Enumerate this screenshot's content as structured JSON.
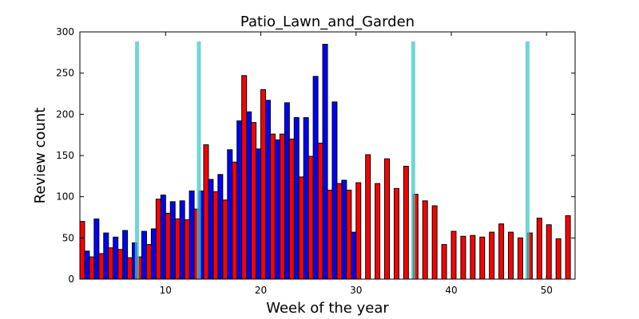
{
  "chart_data": {
    "type": "bar",
    "title": "Patio_Lawn_and_Garden",
    "xlabel": "Week of the year",
    "ylabel": "Review count",
    "xlim": [
      1,
      53
    ],
    "ylim": [
      0,
      300
    ],
    "xticks": [
      "10",
      "20",
      "30",
      "40",
      "50"
    ],
    "yticks": [
      "0",
      "50",
      "100",
      "150",
      "200",
      "250",
      "300"
    ],
    "grid": false,
    "series": [
      {
        "color": "#0000ff",
        "x": [
          2,
          3,
          4,
          5,
          6,
          7,
          8,
          9,
          10,
          11,
          12,
          13,
          14,
          15,
          16,
          17,
          18,
          19,
          20,
          21,
          22,
          23,
          24,
          25,
          26,
          27,
          28,
          29,
          30
        ],
        "values": [
          34,
          73,
          56,
          51,
          59,
          44,
          58,
          61,
          102,
          94,
          95,
          107,
          107,
          121,
          127,
          157,
          192,
          203,
          158,
          217,
          169,
          214,
          196,
          196,
          246,
          285,
          215,
          120,
          57
        ]
      },
      {
        "color": "#ff0000",
        "x": [
          1,
          2,
          3,
          4,
          5,
          6,
          7,
          8,
          9,
          10,
          11,
          12,
          13,
          14,
          15,
          16,
          17,
          18,
          19,
          20,
          21,
          22,
          23,
          24,
          25,
          26,
          27,
          28,
          29,
          30,
          31,
          32,
          33,
          34,
          35,
          36,
          37,
          38,
          39,
          40,
          41,
          42,
          43,
          44,
          45,
          46,
          47,
          48,
          49,
          50,
          51,
          52
        ],
        "values": [
          70,
          27,
          31,
          38,
          36,
          26,
          27,
          42,
          97,
          80,
          73,
          72,
          85,
          163,
          106,
          96,
          142,
          247,
          190,
          230,
          176,
          176,
          170,
          124,
          149,
          165,
          108,
          116,
          108,
          117,
          151,
          116,
          146,
          110,
          137,
          103,
          95,
          89,
          42,
          58,
          52,
          53,
          51,
          57,
          67,
          57,
          50,
          56,
          74,
          66,
          49,
          77
        ]
      },
      {
        "color": "#40c8c8",
        "type": "vertical-line",
        "x": [
          7,
          13.5,
          36,
          48
        ]
      }
    ]
  }
}
